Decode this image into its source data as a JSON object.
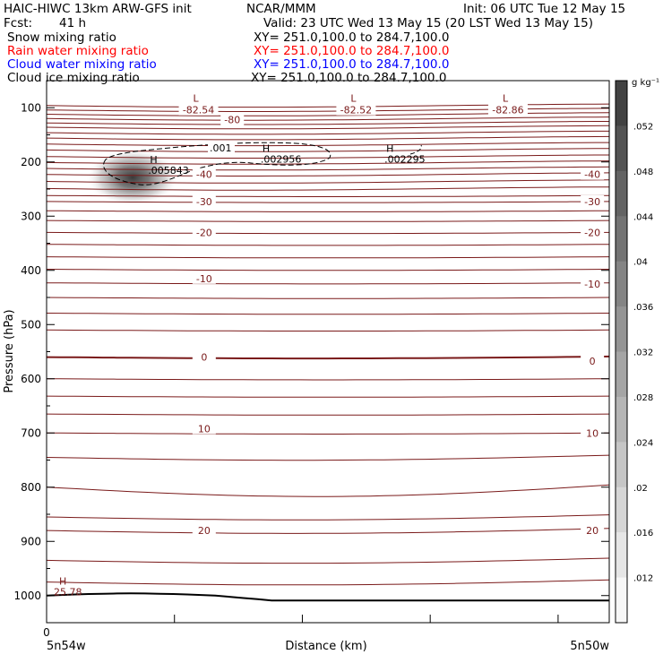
{
  "header": {
    "model": "HAIC-HIWC 13km ARW-GFS init",
    "org": "NCAR/MMM",
    "init": "Init: 06 UTC Tue 12 May 15",
    "fcst_label": "Fcst:",
    "fcst_value": "41 h",
    "valid": "Valid: 23 UTC Wed 13 May 15 (20 LST Wed 13 May 15)",
    "fields": [
      {
        "name": "Snow mixing ratio",
        "xy": "XY= 251.0,100.0 to 284.7,100.0",
        "color": "#000000"
      },
      {
        "name": "Rain water mixing ratio",
        "xy": "XY= 251.0,100.0 to 284.7,100.0",
        "color": "#ff0000"
      },
      {
        "name": "Cloud water mixing ratio",
        "xy": "XY= 251.0,100.0 to 284.7,100.0",
        "color": "#0000ff"
      },
      {
        "name": "Cloud ice mixing ratio",
        "xy": "XY= 251.0,100.0 to 284.7,100.0",
        "color": "#000000"
      }
    ]
  },
  "chart_data": {
    "type": "contour cross-section",
    "ylabel": "Pressure (hPa)",
    "xlabel": "Distance (km)",
    "y_ticks": [
      100,
      200,
      300,
      400,
      500,
      600,
      700,
      800,
      900,
      1000
    ],
    "ylim": [
      50,
      1050
    ],
    "y_scale": "linear",
    "x_tick_top": "0",
    "x_left_label": "5n54w",
    "x_right_label": "5n50w",
    "colorbar": {
      "unit": "g kg⁻¹",
      "ticks": [
        ".052",
        ".048",
        ".044",
        ".04",
        ".036",
        ".032",
        ".028",
        ".024",
        ".02",
        ".016",
        ".012"
      ],
      "levels": [
        0.008,
        0.056
      ],
      "colors": {
        "low": "#ffffff",
        "high": "#3a3a3a"
      }
    },
    "temperature_contours": {
      "color": "#7a1a1a",
      "labels": [
        {
          "text": "-80",
          "p": 122,
          "pos": "left"
        },
        {
          "text": "-40",
          "p": 223,
          "pos": "mid"
        },
        {
          "text": "-40",
          "p": 223,
          "pos": "right"
        },
        {
          "text": "-30",
          "p": 273,
          "pos": "mid"
        },
        {
          "text": "-30",
          "p": 273,
          "pos": "right"
        },
        {
          "text": "-20",
          "p": 330,
          "pos": "mid"
        },
        {
          "text": "-20",
          "p": 330,
          "pos": "right"
        },
        {
          "text": "-10",
          "p": 415,
          "pos": "mid"
        },
        {
          "text": "-10",
          "p": 425,
          "pos": "right"
        },
        {
          "text": "0",
          "p": 560,
          "pos": "mid"
        },
        {
          "text": "0",
          "p": 567,
          "pos": "right"
        },
        {
          "text": "10",
          "p": 692,
          "pos": "mid"
        },
        {
          "text": "10",
          "p": 700,
          "pos": "right"
        },
        {
          "text": "20",
          "p": 880,
          "pos": "mid"
        },
        {
          "text": "20",
          "p": 880,
          "pos": "right"
        }
      ],
      "extrema": [
        {
          "mark": "L",
          "value": "-82.54",
          "x_frac": 0.27
        },
        {
          "mark": "L",
          "value": "-82.52",
          "x_frac": 0.55
        },
        {
          "mark": "L",
          "value": "-82.86",
          "x_frac": 0.82
        }
      ],
      "surface_high": {
        "mark": "H",
        "value": "25.78"
      }
    },
    "snow_contours": {
      "outer_level": ".001",
      "maxima": [
        {
          "mark": "H",
          "value": ".005843",
          "x_frac": 0.19,
          "p": 215
        },
        {
          "mark": "H",
          "value": ".002956",
          "x_frac": 0.39,
          "p": 195
        },
        {
          "mark": "H",
          "value": ".002295",
          "x_frac": 0.61,
          "p": 195
        }
      ]
    }
  }
}
